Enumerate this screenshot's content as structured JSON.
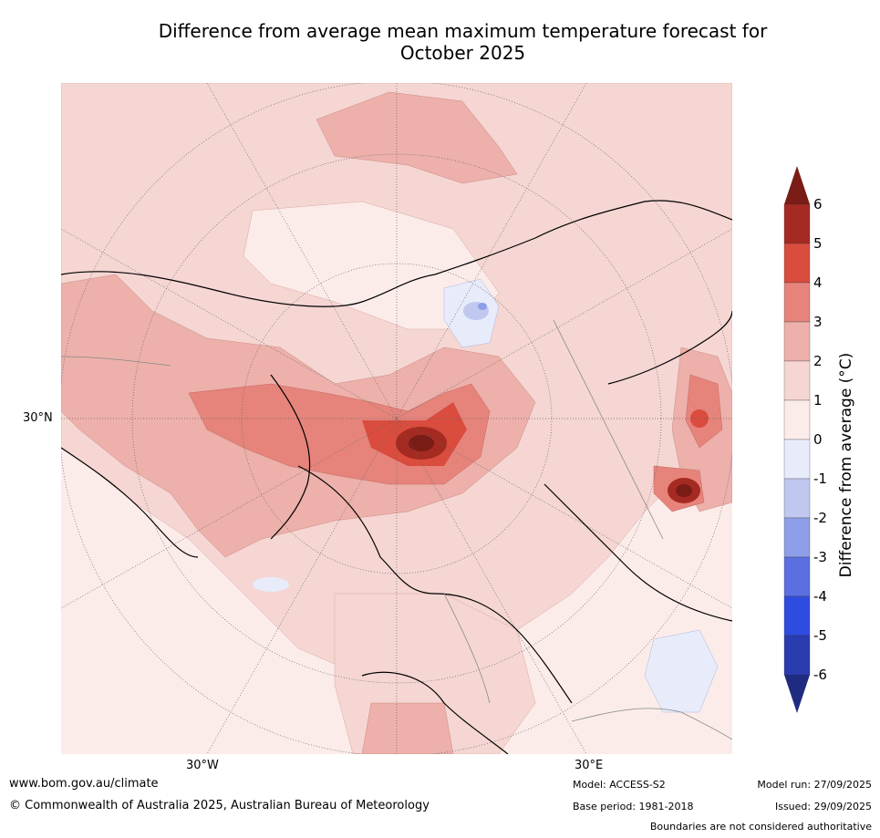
{
  "title_line1": "Difference from average mean maximum temperature forecast for",
  "title_line2": "October 2025",
  "axis": {
    "lat_label": "30°N",
    "lon_left": "30°W",
    "lon_right": "30°E"
  },
  "colorbar": {
    "label": "Difference from average (°C)",
    "ticks": [
      "6",
      "5",
      "4",
      "3",
      "2",
      "1",
      "0",
      "-1",
      "-2",
      "-3",
      "-4",
      "-5",
      "-6"
    ],
    "colors": [
      "#7a1c16",
      "#a52a21",
      "#d94c3e",
      "#e6847c",
      "#edb0aa",
      "#f5d6d2",
      "#fbecea",
      "#e8ecfa",
      "#c0c8f0",
      "#8f9ee8",
      "#5b6fe0",
      "#2f4ce0",
      "#2a3cb0",
      "#1e2b80"
    ]
  },
  "footer": {
    "website": "www.bom.gov.au/climate",
    "copyright": "© Commonwealth of Australia 2025, Australian Bureau of Meteorology",
    "model": "Model: ACCESS-S2",
    "base_period": "Base period: 1981-2018",
    "model_run": "Model run: 27/09/2025",
    "issued": "Issued: 29/09/2025",
    "disclaimer": "Boundaries are not considered authoritative"
  }
}
